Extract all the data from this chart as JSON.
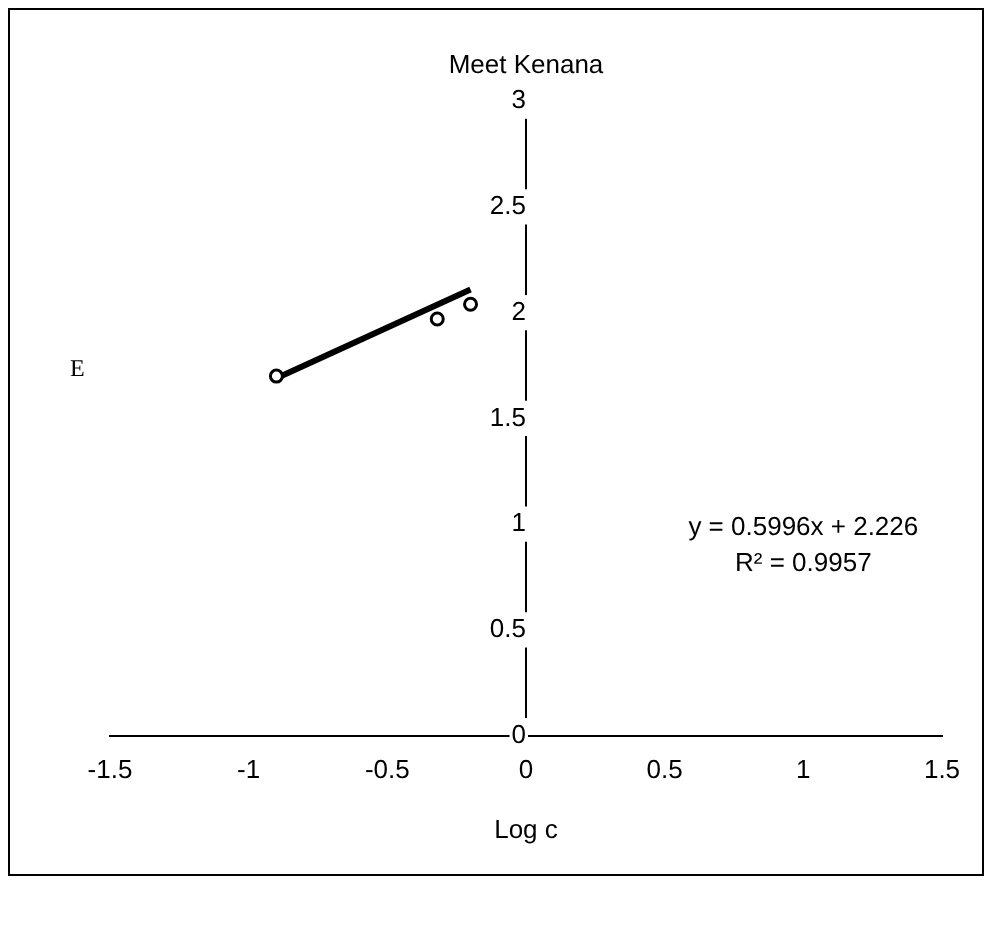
{
  "chart_data": {
    "type": "scatter",
    "title": "Meet Kenana",
    "xlabel": "Log c",
    "ylabel": "E",
    "x": [
      -0.9,
      -0.32,
      -0.2
    ],
    "series": [
      {
        "color": "#000000",
        "marker": "circle",
        "values": [
          1.7,
          1.97,
          2.04
        ]
      },
      {
        "type": "line",
        "color": "#000000",
        "x": [
          -0.9,
          -0.2
        ],
        "values": [
          1.69,
          2.11
        ]
      }
    ],
    "xlim": [
      -1.5,
      1.5
    ],
    "xticks": [
      -1.5,
      -1,
      -0.5,
      0,
      0.5,
      1,
      1.5
    ],
    "ylim": [
      0,
      3
    ],
    "yticks": [
      0,
      0.5,
      1,
      1.5,
      2,
      2.5,
      3
    ],
    "grid": false,
    "legend": false,
    "annotations": [
      "y = 0.5996x + 2.226",
      "R² = 0.9957"
    ]
  }
}
